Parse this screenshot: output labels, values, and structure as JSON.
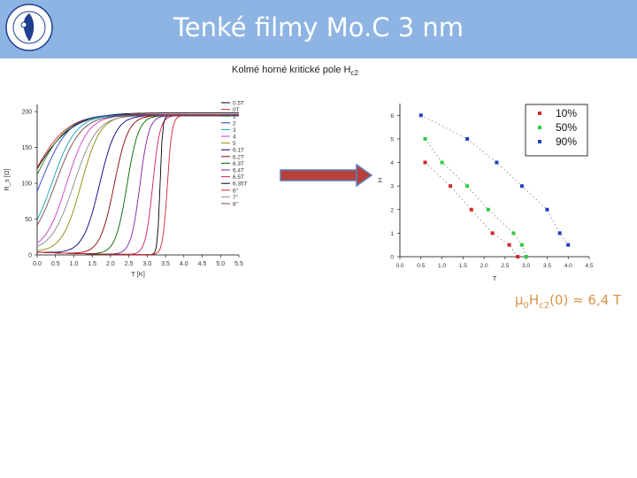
{
  "header": {
    "title": "Tenké filmy Mo.C 3 nm"
  },
  "subtitle": {
    "text": "Kolmé horné kritické pole H",
    "sub": "c2"
  },
  "formula": {
    "mu": "μ",
    "zero": "0",
    "H": "H",
    "c2": "c2",
    "rest": "(0) ≈ 6,4 T"
  },
  "colors": {
    "header": "#8db4e2",
    "arrow_fill": "#b7413a",
    "arrow_border": "#5b7fbf",
    "formula": "#d9934a"
  },
  "chart_data": [
    {
      "type": "line",
      "xlabel": "T [K]",
      "ylabel": "R_s [Ω]",
      "xlim": [
        0,
        5.5
      ],
      "ylim": [
        0,
        210
      ],
      "xticks": [
        "0.0",
        "0.5",
        "1.0",
        "1.5",
        "2.0",
        "2.5",
        "3.0",
        "3.5",
        "4.0",
        "4.5",
        "5.0",
        "5.5"
      ],
      "yticks": [
        "0",
        "50",
        "100",
        "150",
        "200"
      ],
      "legend_position": "right",
      "series": [
        {
          "name": "0.5T",
          "color": "#000000",
          "tc": -0.2,
          "w": 1.6,
          "rinf": 198
        },
        {
          "name": "0T",
          "color": "#d62728",
          "tc": -0.2,
          "w": 1.4,
          "rinf": 196
        },
        {
          "name": "1",
          "color": "#2e7d32",
          "tc": -0.1,
          "w": 1.3,
          "rinf": 195
        },
        {
          "name": "2",
          "color": "#1f3fbf",
          "tc": 0.1,
          "w": 1.1,
          "rinf": 195
        },
        {
          "name": "3",
          "color": "#17a2b8",
          "tc": 0.4,
          "w": 0.95,
          "rinf": 194
        },
        {
          "name": "4",
          "color": "#c83cc8",
          "tc": 0.8,
          "w": 0.85,
          "rinf": 194
        },
        {
          "name": "5",
          "color": "#8b8b00",
          "tc": 1.2,
          "w": 0.75,
          "rinf": 194
        },
        {
          "name": "6.1T",
          "color": "#000080",
          "tc": 1.7,
          "w": 0.65,
          "rinf": 194
        },
        {
          "name": "6.2T",
          "color": "#8b0000",
          "tc": 2.1,
          "w": 0.55,
          "rinf": 194
        },
        {
          "name": "6.3T",
          "color": "#006400",
          "tc": 2.45,
          "w": 0.45,
          "rinf": 194
        },
        {
          "name": "6.4T",
          "color": "#7b1fa2",
          "tc": 2.8,
          "w": 0.35,
          "rinf": 194
        },
        {
          "name": "6.5T",
          "color": "#d81b60",
          "tc": 3.15,
          "w": 0.28,
          "rinf": 194
        },
        {
          "name": "6.35T",
          "color": "#000000",
          "tc": 3.35,
          "w": 0.1,
          "rinf": 194
        },
        {
          "name": "6\"",
          "color": "#d62728",
          "tc": 3.55,
          "w": 0.18,
          "rinf": 194
        },
        {
          "name": "7\"",
          "color": "#888888",
          "tc": 1.0,
          "w": 0.9,
          "rinf": 194
        },
        {
          "name": "8\"",
          "color": "#6d4c41",
          "tc": 0.5,
          "w": 1.0,
          "rinf": 194
        }
      ]
    },
    {
      "type": "scatter",
      "xlabel": "T",
      "ylabel": "H",
      "xlim": [
        0,
        4.5
      ],
      "ylim": [
        0,
        6.5
      ],
      "xticks": [
        "0.0",
        "0.5",
        "1.0",
        "1.5",
        "2.0",
        "2.5",
        "3.0",
        "3.5",
        "4.0",
        "4.5"
      ],
      "yticks": [
        "0",
        "1",
        "2",
        "3",
        "4",
        "5",
        "6"
      ],
      "legend_position": "top-right",
      "series": [
        {
          "name": "10%",
          "color": "#d62728",
          "x": [
            0.6,
            1.2,
            1.7,
            2.2,
            2.6,
            2.8
          ],
          "y": [
            4.0,
            3.0,
            2.0,
            1.0,
            0.5,
            0.0
          ]
        },
        {
          "name": "50%",
          "color": "#2ecc40",
          "x": [
            0.6,
            1.0,
            1.6,
            2.1,
            2.7,
            2.9,
            3.0
          ],
          "y": [
            5.0,
            4.0,
            3.0,
            2.0,
            1.0,
            0.5,
            0.0
          ]
        },
        {
          "name": "90%",
          "color": "#1f3fbf",
          "x": [
            0.5,
            1.6,
            2.3,
            2.9,
            3.5,
            3.8,
            4.0
          ],
          "y": [
            6.0,
            5.0,
            4.0,
            3.0,
            2.0,
            1.0,
            0.5
          ]
        }
      ]
    }
  ]
}
